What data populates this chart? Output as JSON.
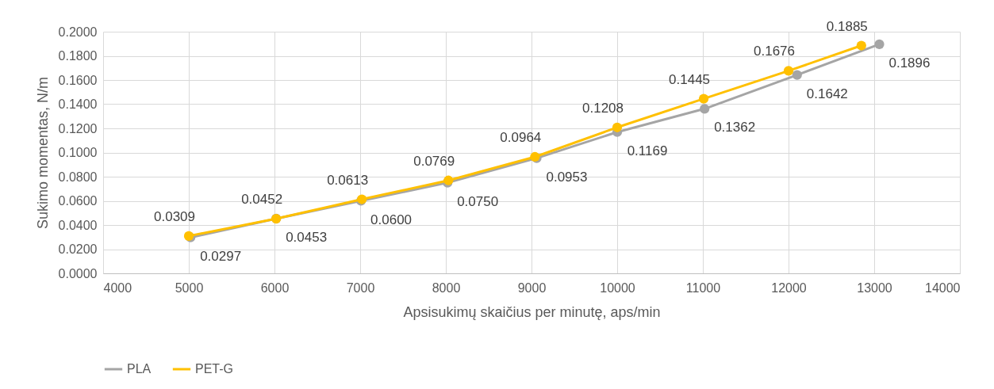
{
  "chart_data": {
    "type": "line",
    "xlabel": "Apsisukimų skaičius per minutę, aps/min",
    "ylabel": "Sukimo momentas, N/m",
    "series": [
      {
        "name": "PLA",
        "color": "#a5a5a5",
        "x": [
          5020,
          6020,
          7010,
          8020,
          9060,
          10000,
          11020,
          12100,
          13060
        ],
        "values": [
          0.0297,
          0.0453,
          0.06,
          0.075,
          0.0953,
          0.1169,
          0.1362,
          0.1642,
          0.1896
        ],
        "value_labels": [
          "0.0297",
          "0.0453",
          "0.0600",
          "0.0750",
          "0.0953",
          "0.1169",
          "0.1362",
          "0.1642",
          "0.1896"
        ]
      },
      {
        "name": "PET-G",
        "color": "#ffc000",
        "x": [
          5000,
          6020,
          7020,
          8030,
          9040,
          10000,
          11010,
          12000,
          12850
        ],
        "values": [
          0.0309,
          0.0452,
          0.0613,
          0.0769,
          0.0964,
          0.1208,
          0.1445,
          0.1676,
          0.1885
        ],
        "value_labels": [
          "0.0309",
          "0.0452",
          "0.0613",
          "0.0769",
          "0.0964",
          "0.1208",
          "0.1445",
          "0.1676",
          "0.1885"
        ]
      }
    ],
    "xlim": [
      4000,
      14000
    ],
    "xticks": [
      4000,
      5000,
      6000,
      7000,
      8000,
      9000,
      10000,
      11000,
      12000,
      13000,
      14000
    ],
    "ylim": [
      0,
      0.2
    ],
    "yticks": [
      {
        "value": 0,
        "label": "0.0000"
      },
      {
        "value": 0.02,
        "label": "0.0200"
      },
      {
        "value": 0.04,
        "label": "0.0400"
      },
      {
        "value": 0.06,
        "label": "0.0600"
      },
      {
        "value": 0.08,
        "label": "0.0800"
      },
      {
        "value": 0.1,
        "label": "0.1000"
      },
      {
        "value": 0.12,
        "label": "0.1200"
      },
      {
        "value": 0.14,
        "label": "0.1400"
      },
      {
        "value": 0.16,
        "label": "0.1600"
      },
      {
        "value": 0.18,
        "label": "0.1800"
      },
      {
        "value": 0.2,
        "label": "0.2000"
      }
    ],
    "grid": true,
    "legend": "bottom",
    "marker": "circle",
    "line_style": "solid",
    "data_labels": true
  }
}
